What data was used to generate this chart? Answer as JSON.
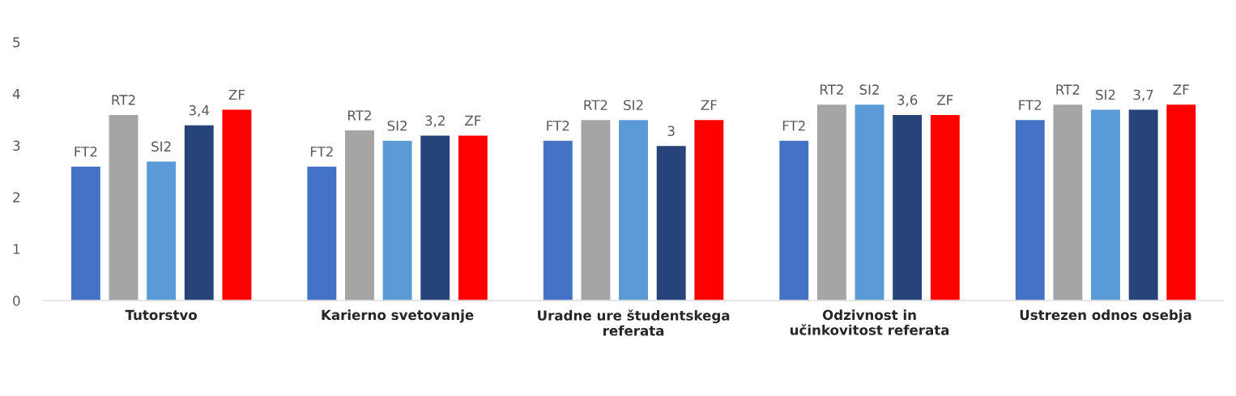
{
  "chart_data": {
    "type": "bar",
    "categories": [
      "Tutorstvo",
      "Karierno svetovanje",
      "Uradne ure študentskega referata",
      "Odzivnost in učinkovitost referata",
      "Ustrezen odnos osebja"
    ],
    "series": [
      {
        "name": "FT2",
        "color": "#4472c4",
        "values": [
          2.6,
          2.6,
          3.1,
          3.1,
          3.5
        ]
      },
      {
        "name": "RT2",
        "color": "#a5a5a5",
        "values": [
          3.6,
          3.3,
          3.5,
          3.8,
          3.8
        ]
      },
      {
        "name": "SI2",
        "color": "#5b9bd5",
        "values": [
          2.7,
          3.1,
          3.5,
          3.8,
          3.7
        ]
      },
      {
        "color": "#264478",
        "values": [
          3.4,
          3.2,
          3,
          3.6,
          3.7
        ],
        "value_labels": [
          "3,4",
          "3,2",
          "3",
          "3,6",
          "3,7"
        ]
      },
      {
        "name": "ZF",
        "color": "#ff0000",
        "values": [
          3.7,
          3.2,
          3.5,
          3.6,
          3.8
        ]
      }
    ],
    "ylim": [
      0,
      5
    ],
    "yticks": [
      0,
      1,
      2,
      3,
      4,
      5
    ],
    "grid": false,
    "legend": false
  }
}
